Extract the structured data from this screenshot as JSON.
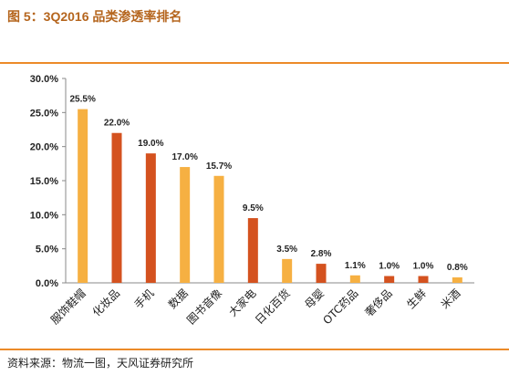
{
  "header": {
    "title": "图 5：3Q2016 品类渗透率排名"
  },
  "footer": {
    "source": "资料来源：物流一图，天风证券研究所"
  },
  "colors": {
    "accent": "#ec8a28",
    "bar_light": "#f6b042",
    "bar_dark": "#d4521f"
  },
  "chart_data": {
    "type": "bar",
    "categories": [
      "服饰鞋帽",
      "化妆品",
      "手机",
      "数据",
      "图书音像",
      "大家电",
      "日化百货",
      "母婴",
      "OTC药品",
      "奢侈品",
      "生鲜",
      "米酒"
    ],
    "values": [
      25.5,
      22.0,
      19.0,
      17.0,
      15.7,
      9.5,
      3.5,
      2.8,
      1.1,
      1.0,
      1.0,
      0.8
    ],
    "value_labels": [
      "25.5%",
      "22.0%",
      "19.0%",
      "17.0%",
      "15.7%",
      "9.5%",
      "3.5%",
      "2.8%",
      "1.1%",
      "1.0%",
      "1.0%",
      "0.8%"
    ],
    "bar_colors": [
      "#f6b042",
      "#d4521f",
      "#d4521f",
      "#f6b042",
      "#f6b042",
      "#d4521f",
      "#f6b042",
      "#d4521f",
      "#f6b042",
      "#d4521f",
      "#d4521f",
      "#f6b042"
    ],
    "y_ticks": [
      "0.0%",
      "5.0%",
      "10.0%",
      "15.0%",
      "20.0%",
      "25.0%",
      "30.0%"
    ],
    "ylim": [
      0,
      30
    ],
    "grid": false,
    "title": "",
    "xlabel": "",
    "ylabel": ""
  }
}
